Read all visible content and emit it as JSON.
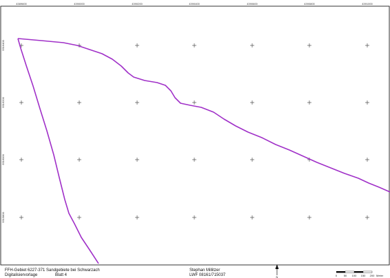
{
  "map": {
    "frame_color": "#000000",
    "boundary_color": "#a030c8",
    "grid_x_labels": [
      "4389600",
      "4390000",
      "4390200",
      "4390400",
      "4390600",
      "4390800",
      "4391000"
    ],
    "grid_y_labels": [
      "5516400",
      "5516200",
      "5516000",
      "5515800"
    ],
    "grid_marker": "+"
  },
  "footer": {
    "line1_left": "FFH-Gebiet 6227-371 Sandgebiete bei Schwarzach",
    "line2_left": "Digitalisiervorlage",
    "sheet_label": "Blatt 4",
    "author": "Stephan Millitzer",
    "agency": "LWF 08161/715037",
    "north_arrow_label": "N",
    "scale_ticks": [
      "0",
      "50",
      "100",
      "150",
      "200"
    ],
    "scale_unit": "Meter"
  }
}
